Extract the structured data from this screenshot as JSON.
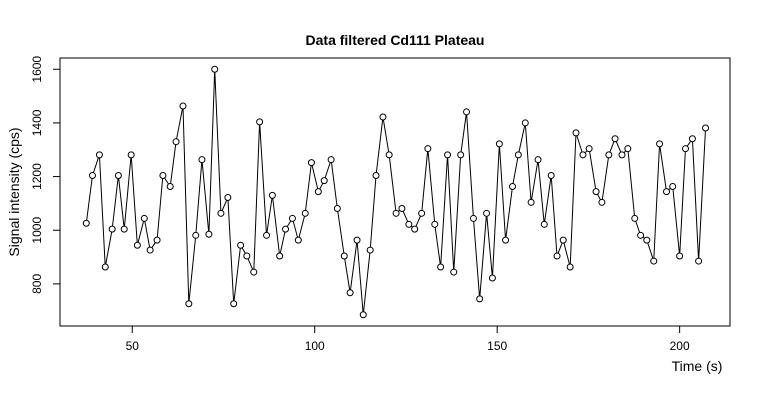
{
  "chart_data": {
    "type": "line",
    "title": "Data filtered Cd111 Plateau",
    "x_label": "Time (s)",
    "y_label": "Signal intensity (cps)",
    "x": [
      37.4,
      39.1,
      41,
      42.6,
      44.5,
      46.2,
      47.8,
      49.7,
      51.4,
      53.3,
      54.9,
      56.8,
      58.4,
      60.4,
      62,
      63.9,
      65.5,
      67.4,
      69.1,
      71,
      72.6,
      74.3,
      76.2,
      77.8,
      79.7,
      81.4,
      83.3,
      84.9,
      86.8,
      88.4,
      90.4,
      92,
      93.9,
      95.5,
      97.4,
      99.1,
      101,
      102.6,
      104.5,
      106.2,
      108.1,
      109.7,
      111.6,
      113.3,
      115.2,
      116.8,
      118.7,
      120.4,
      122.3,
      123.9,
      125.8,
      127.4,
      129.3,
      131,
      132.9,
      134.5,
      136.4,
      138.1,
      140,
      141.6,
      143.5,
      145.2,
      147.1,
      148.7,
      150.6,
      152.3,
      154.2,
      155.8,
      157.7,
      159.3,
      161.2,
      162.9,
      164.8,
      166.4,
      168.1,
      170,
      171.6,
      173.5,
      175.2,
      177.1,
      178.7,
      180.6,
      182.3,
      184.2,
      185.8,
      187.7,
      189.3,
      191,
      192.9,
      194.5,
      196.4,
      198.1,
      200,
      201.6,
      203.5,
      205.2,
      207.1
    ],
    "values": [
      1026,
      1204,
      1281,
      863,
      1004,
      1204,
      1004,
      1281,
      944,
      1044,
      926,
      963,
      1204,
      1163,
      1330,
      1463,
      726,
      981,
      1263,
      985,
      1600,
      1063,
      1122,
      726,
      944,
      904,
      844,
      1404,
      981,
      1130,
      904,
      1004,
      1044,
      963,
      1063,
      1252,
      1144,
      1185,
      1263,
      1081,
      904,
      767,
      963,
      685,
      926,
      1204,
      1422,
      1281,
      1063,
      1081,
      1022,
      1004,
      1063,
      1304,
      1022,
      863,
      1281,
      844,
      1281,
      1441,
      1044,
      744,
      1063,
      822,
      1322,
      963,
      1163,
      1281,
      1400,
      1104,
      1263,
      1022,
      1204,
      904,
      963,
      863,
      1363,
      1281,
      1304,
      1144,
      1104,
      1281,
      1341,
      1281,
      1304,
      1044,
      981,
      963,
      885,
      1322,
      1144,
      1163,
      904,
      1304,
      1341,
      885,
      1381
    ],
    "color": "#000000",
    "xlim": [
      30.2,
      213.8
    ],
    "ylim": [
      643,
      1642
    ],
    "xticks": [
      50,
      100,
      150,
      200
    ],
    "yticks": [
      800,
      1000,
      1200,
      1400,
      1600
    ]
  }
}
